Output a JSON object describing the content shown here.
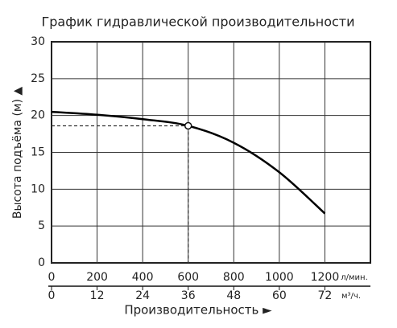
{
  "chart_data": {
    "type": "line",
    "title": "График гидравлической производительности",
    "y_label": "Высота подъёма (м) ▲",
    "x_label": "Производительность ►",
    "x_unit": "л/мин.",
    "x2_unit": "м³/ч.",
    "x": [
      0,
      200,
      400,
      600,
      800,
      1000,
      1200
    ],
    "values": [
      20.5,
      20.1,
      19.5,
      18.6,
      16.3,
      12.3,
      6.7
    ],
    "color": "#000000",
    "highlight": {
      "x": 600,
      "y": 18.6
    },
    "xlim": [
      0,
      1400
    ],
    "xticks": [
      0,
      200,
      400,
      600,
      800,
      1000,
      1200
    ],
    "x2lim": [
      0,
      84
    ],
    "x2ticks": [
      0,
      12,
      24,
      36,
      48,
      60,
      72
    ],
    "ylim": [
      0,
      30
    ],
    "yticks": [
      0,
      5,
      10,
      15,
      20,
      25,
      30
    ],
    "grid": true
  }
}
